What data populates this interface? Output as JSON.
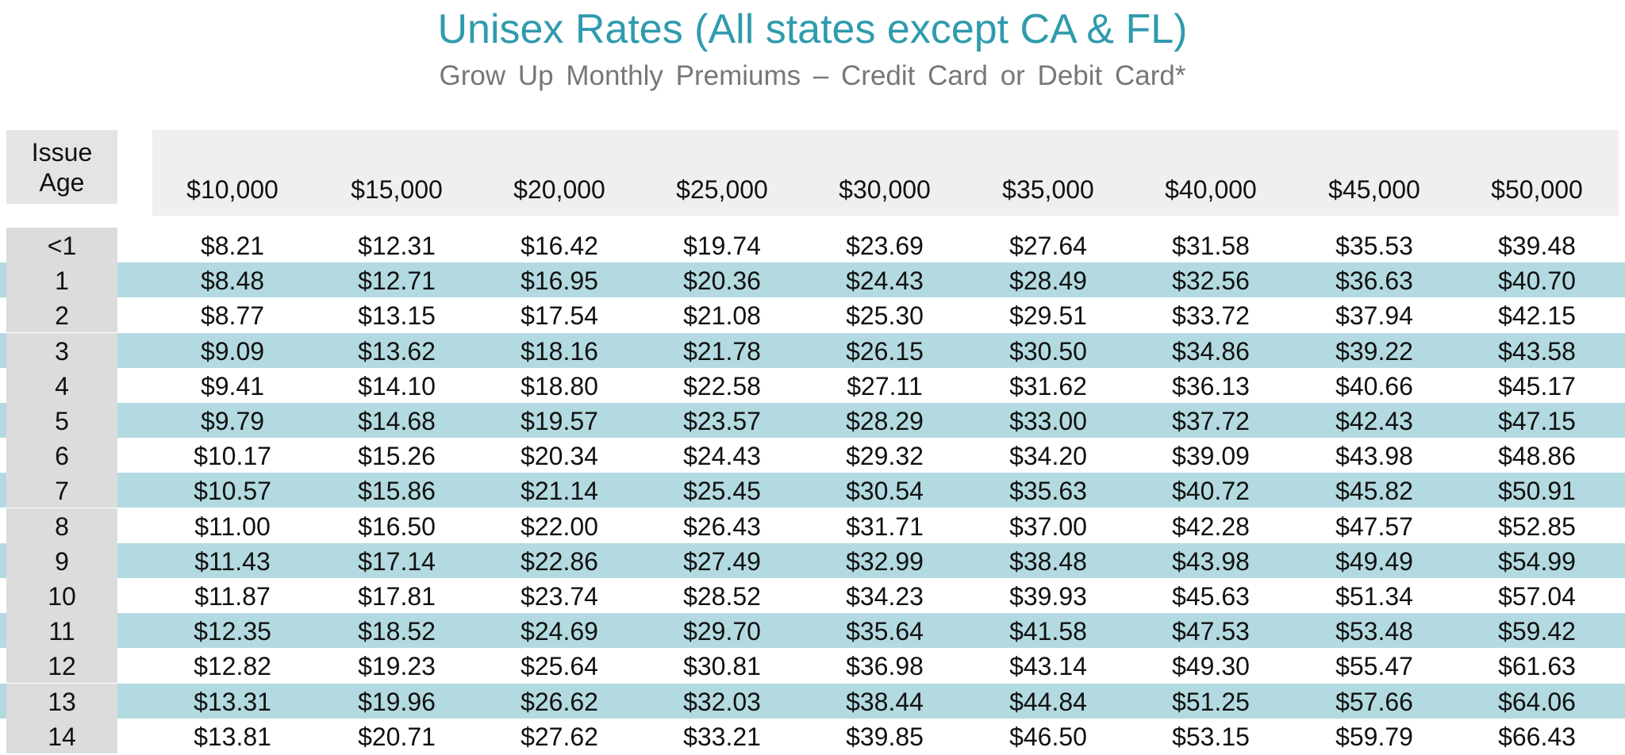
{
  "title": "Unisex Rates (All states except CA & FL)",
  "subtitle": "Grow Up Monthly Premiums – Credit Card or Debit Card*",
  "age_header": [
    "Issue",
    "Age"
  ],
  "colors": {
    "title": "#2f9bad",
    "row_shade": "#b3dae0",
    "age_cell": "#dcdcdc",
    "header_bg": "#efefef"
  },
  "amounts": [
    "$10,000",
    "$15,000",
    "$20,000",
    "$25,000",
    "$30,000",
    "$35,000",
    "$40,000",
    "$45,000",
    "$50,000"
  ],
  "rows": [
    {
      "age": "<1",
      "values": [
        "$8.21",
        "$12.31",
        "$16.42",
        "$19.74",
        "$23.69",
        "$27.64",
        "$31.58",
        "$35.53",
        "$39.48"
      ]
    },
    {
      "age": "1",
      "values": [
        "$8.48",
        "$12.71",
        "$16.95",
        "$20.36",
        "$24.43",
        "$28.49",
        "$32.56",
        "$36.63",
        "$40.70"
      ]
    },
    {
      "age": "2",
      "values": [
        "$8.77",
        "$13.15",
        "$17.54",
        "$21.08",
        "$25.30",
        "$29.51",
        "$33.72",
        "$37.94",
        "$42.15"
      ]
    },
    {
      "age": "3",
      "values": [
        "$9.09",
        "$13.62",
        "$18.16",
        "$21.78",
        "$26.15",
        "$30.50",
        "$34.86",
        "$39.22",
        "$43.58"
      ]
    },
    {
      "age": "4",
      "values": [
        "$9.41",
        "$14.10",
        "$18.80",
        "$22.58",
        "$27.11",
        "$31.62",
        "$36.13",
        "$40.66",
        "$45.17"
      ]
    },
    {
      "age": "5",
      "values": [
        "$9.79",
        "$14.68",
        "$19.57",
        "$23.57",
        "$28.29",
        "$33.00",
        "$37.72",
        "$42.43",
        "$47.15"
      ]
    },
    {
      "age": "6",
      "values": [
        "$10.17",
        "$15.26",
        "$20.34",
        "$24.43",
        "$29.32",
        "$34.20",
        "$39.09",
        "$43.98",
        "$48.86"
      ]
    },
    {
      "age": "7",
      "values": [
        "$10.57",
        "$15.86",
        "$21.14",
        "$25.45",
        "$30.54",
        "$35.63",
        "$40.72",
        "$45.82",
        "$50.91"
      ]
    },
    {
      "age": "8",
      "values": [
        "$11.00",
        "$16.50",
        "$22.00",
        "$26.43",
        "$31.71",
        "$37.00",
        "$42.28",
        "$47.57",
        "$52.85"
      ]
    },
    {
      "age": "9",
      "values": [
        "$11.43",
        "$17.14",
        "$22.86",
        "$27.49",
        "$32.99",
        "$38.48",
        "$43.98",
        "$49.49",
        "$54.99"
      ]
    },
    {
      "age": "10",
      "values": [
        "$11.87",
        "$17.81",
        "$23.74",
        "$28.52",
        "$34.23",
        "$39.93",
        "$45.63",
        "$51.34",
        "$57.04"
      ]
    },
    {
      "age": "11",
      "values": [
        "$12.35",
        "$18.52",
        "$24.69",
        "$29.70",
        "$35.64",
        "$41.58",
        "$47.53",
        "$53.48",
        "$59.42"
      ]
    },
    {
      "age": "12",
      "values": [
        "$12.82",
        "$19.23",
        "$25.64",
        "$30.81",
        "$36.98",
        "$43.14",
        "$49.30",
        "$55.47",
        "$61.63"
      ]
    },
    {
      "age": "13",
      "values": [
        "$13.31",
        "$19.96",
        "$26.62",
        "$32.03",
        "$38.44",
        "$44.84",
        "$51.25",
        "$57.66",
        "$64.06"
      ]
    },
    {
      "age": "14",
      "values": [
        "$13.81",
        "$20.71",
        "$27.62",
        "$33.21",
        "$39.85",
        "$46.50",
        "$53.15",
        "$59.79",
        "$66.43"
      ]
    }
  ]
}
